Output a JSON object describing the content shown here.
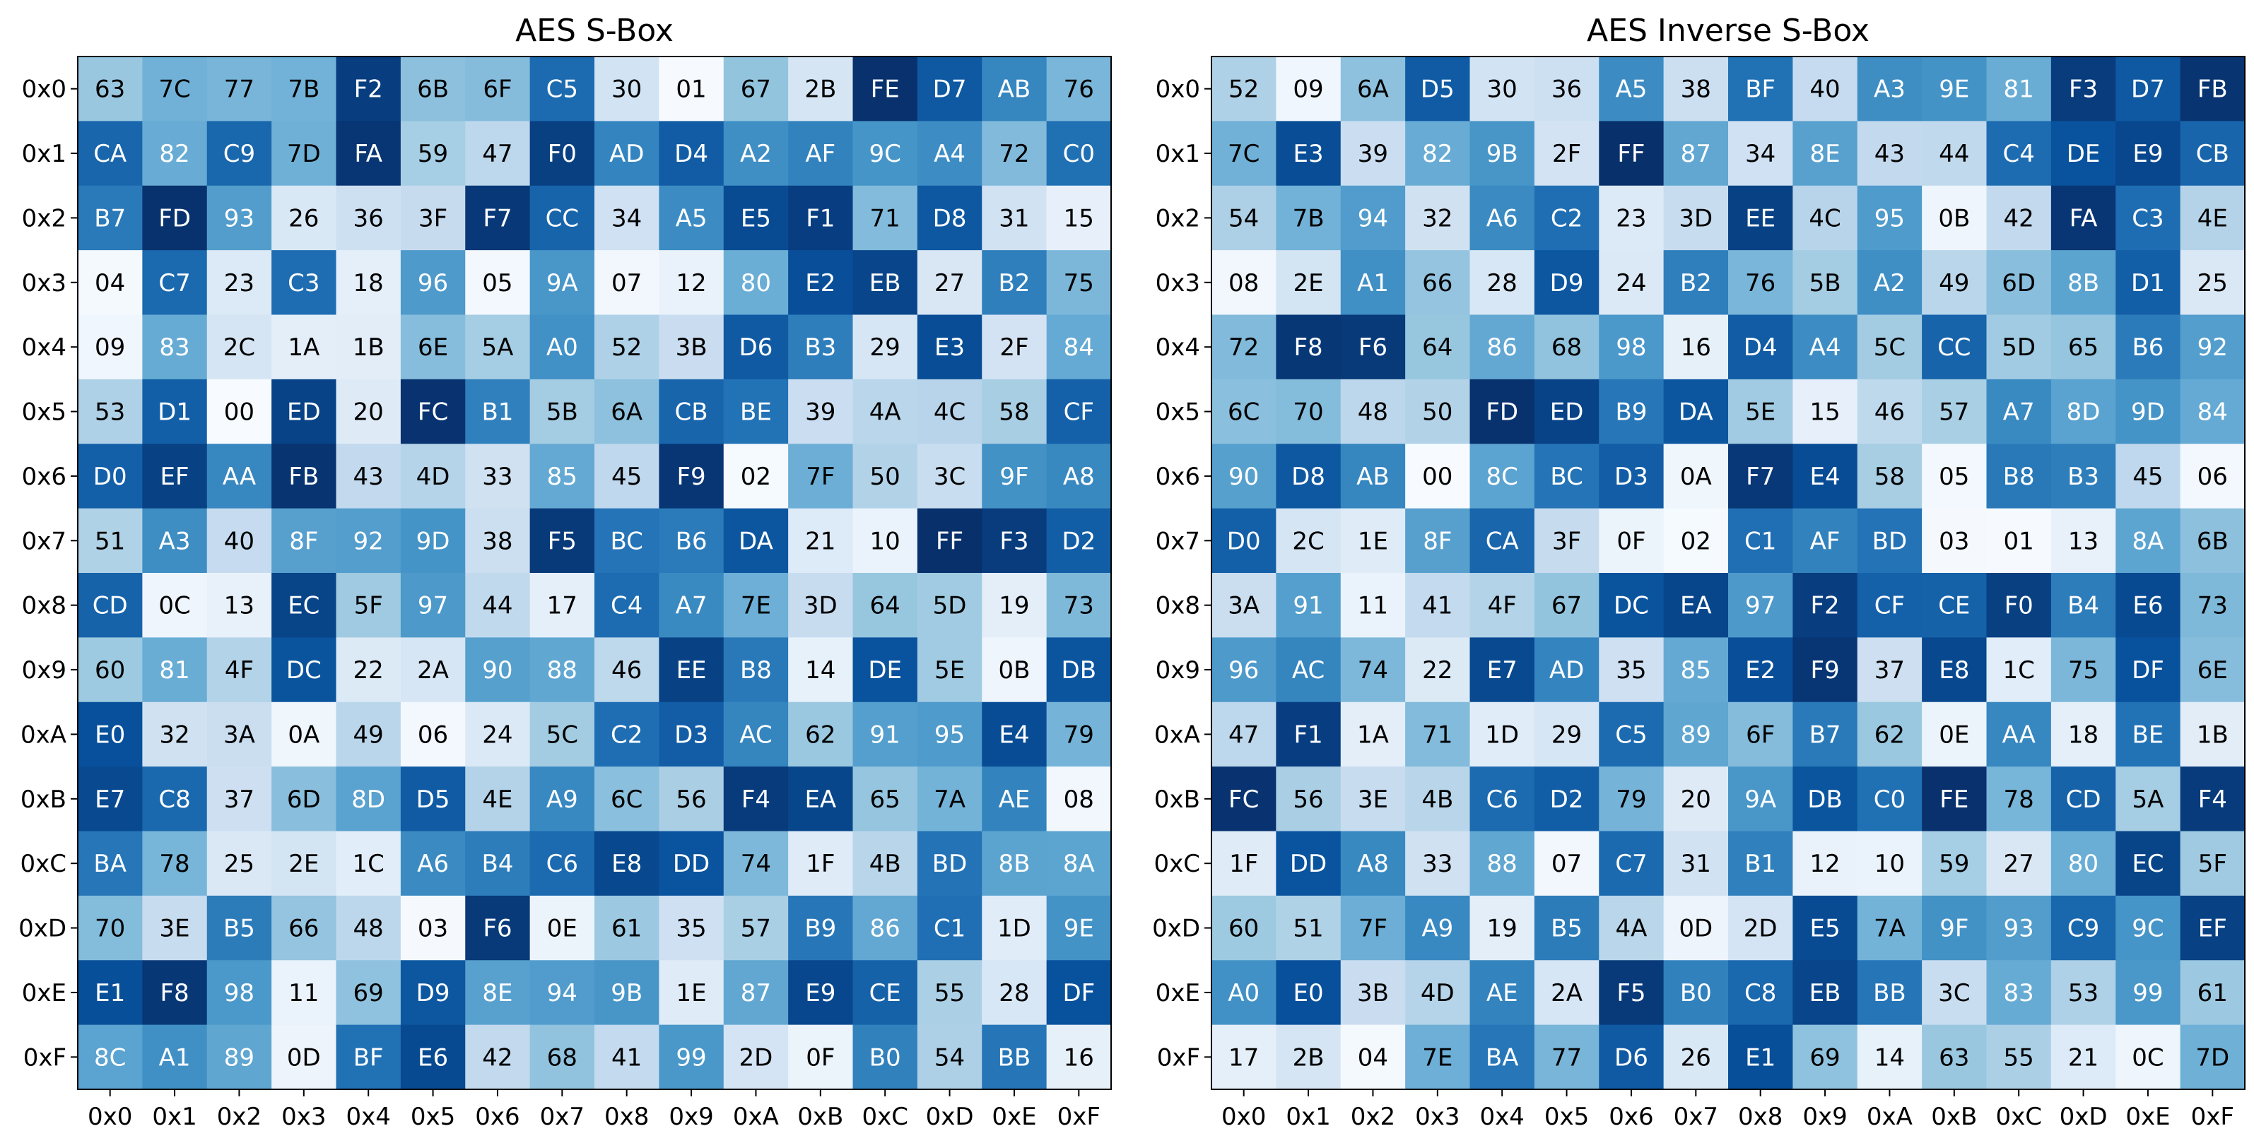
{
  "chart_data": [
    {
      "type": "heatmap",
      "title": "AES S-Box",
      "colormap": "Blues",
      "value_range": [
        0,
        255
      ],
      "x_ticks": [
        "0x0",
        "0x1",
        "0x2",
        "0x3",
        "0x4",
        "0x5",
        "0x6",
        "0x7",
        "0x8",
        "0x9",
        "0xA",
        "0xB",
        "0xC",
        "0xD",
        "0xE",
        "0xF"
      ],
      "y_ticks": [
        "0x0",
        "0x1",
        "0x2",
        "0x3",
        "0x4",
        "0x5",
        "0x6",
        "0x7",
        "0x8",
        "0x9",
        "0xA",
        "0xB",
        "0xC",
        "0xD",
        "0xE",
        "0xF"
      ],
      "rows": [
        [
          "63",
          "7C",
          "77",
          "7B",
          "F2",
          "6B",
          "6F",
          "C5",
          "30",
          "01",
          "67",
          "2B",
          "FE",
          "D7",
          "AB",
          "76"
        ],
        [
          "CA",
          "82",
          "C9",
          "7D",
          "FA",
          "59",
          "47",
          "F0",
          "AD",
          "D4",
          "A2",
          "AF",
          "9C",
          "A4",
          "72",
          "C0"
        ],
        [
          "B7",
          "FD",
          "93",
          "26",
          "36",
          "3F",
          "F7",
          "CC",
          "34",
          "A5",
          "E5",
          "F1",
          "71",
          "D8",
          "31",
          "15"
        ],
        [
          "04",
          "C7",
          "23",
          "C3",
          "18",
          "96",
          "05",
          "9A",
          "07",
          "12",
          "80",
          "E2",
          "EB",
          "27",
          "B2",
          "75"
        ],
        [
          "09",
          "83",
          "2C",
          "1A",
          "1B",
          "6E",
          "5A",
          "A0",
          "52",
          "3B",
          "D6",
          "B3",
          "29",
          "E3",
          "2F",
          "84"
        ],
        [
          "53",
          "D1",
          "00",
          "ED",
          "20",
          "FC",
          "B1",
          "5B",
          "6A",
          "CB",
          "BE",
          "39",
          "4A",
          "4C",
          "58",
          "CF"
        ],
        [
          "D0",
          "EF",
          "AA",
          "FB",
          "43",
          "4D",
          "33",
          "85",
          "45",
          "F9",
          "02",
          "7F",
          "50",
          "3C",
          "9F",
          "A8"
        ],
        [
          "51",
          "A3",
          "40",
          "8F",
          "92",
          "9D",
          "38",
          "F5",
          "BC",
          "B6",
          "DA",
          "21",
          "10",
          "FF",
          "F3",
          "D2"
        ],
        [
          "CD",
          "0C",
          "13",
          "EC",
          "5F",
          "97",
          "44",
          "17",
          "C4",
          "A7",
          "7E",
          "3D",
          "64",
          "5D",
          "19",
          "73"
        ],
        [
          "60",
          "81",
          "4F",
          "DC",
          "22",
          "2A",
          "90",
          "88",
          "46",
          "EE",
          "B8",
          "14",
          "DE",
          "5E",
          "0B",
          "DB"
        ],
        [
          "E0",
          "32",
          "3A",
          "0A",
          "49",
          "06",
          "24",
          "5C",
          "C2",
          "D3",
          "AC",
          "62",
          "91",
          "95",
          "E4",
          "79"
        ],
        [
          "E7",
          "C8",
          "37",
          "6D",
          "8D",
          "D5",
          "4E",
          "A9",
          "6C",
          "56",
          "F4",
          "EA",
          "65",
          "7A",
          "AE",
          "08"
        ],
        [
          "BA",
          "78",
          "25",
          "2E",
          "1C",
          "A6",
          "B4",
          "C6",
          "E8",
          "DD",
          "74",
          "1F",
          "4B",
          "BD",
          "8B",
          "8A"
        ],
        [
          "70",
          "3E",
          "B5",
          "66",
          "48",
          "03",
          "F6",
          "0E",
          "61",
          "35",
          "57",
          "B9",
          "86",
          "C1",
          "1D",
          "9E"
        ],
        [
          "E1",
          "F8",
          "98",
          "11",
          "69",
          "D9",
          "8E",
          "94",
          "9B",
          "1E",
          "87",
          "E9",
          "CE",
          "55",
          "28",
          "DF"
        ],
        [
          "8C",
          "A1",
          "89",
          "0D",
          "BF",
          "E6",
          "42",
          "68",
          "41",
          "99",
          "2D",
          "0F",
          "B0",
          "54",
          "BB",
          "16"
        ]
      ]
    },
    {
      "type": "heatmap",
      "title": "AES Inverse S-Box",
      "colormap": "Blues",
      "value_range": [
        0,
        255
      ],
      "x_ticks": [
        "0x0",
        "0x1",
        "0x2",
        "0x3",
        "0x4",
        "0x5",
        "0x6",
        "0x7",
        "0x8",
        "0x9",
        "0xA",
        "0xB",
        "0xC",
        "0xD",
        "0xE",
        "0xF"
      ],
      "y_ticks": [
        "0x0",
        "0x1",
        "0x2",
        "0x3",
        "0x4",
        "0x5",
        "0x6",
        "0x7",
        "0x8",
        "0x9",
        "0xA",
        "0xB",
        "0xC",
        "0xD",
        "0xE",
        "0xF"
      ],
      "rows": [
        [
          "52",
          "09",
          "6A",
          "D5",
          "30",
          "36",
          "A5",
          "38",
          "BF",
          "40",
          "A3",
          "9E",
          "81",
          "F3",
          "D7",
          "FB"
        ],
        [
          "7C",
          "E3",
          "39",
          "82",
          "9B",
          "2F",
          "FF",
          "87",
          "34",
          "8E",
          "43",
          "44",
          "C4",
          "DE",
          "E9",
          "CB"
        ],
        [
          "54",
          "7B",
          "94",
          "32",
          "A6",
          "C2",
          "23",
          "3D",
          "EE",
          "4C",
          "95",
          "0B",
          "42",
          "FA",
          "C3",
          "4E"
        ],
        [
          "08",
          "2E",
          "A1",
          "66",
          "28",
          "D9",
          "24",
          "B2",
          "76",
          "5B",
          "A2",
          "49",
          "6D",
          "8B",
          "D1",
          "25"
        ],
        [
          "72",
          "F8",
          "F6",
          "64",
          "86",
          "68",
          "98",
          "16",
          "D4",
          "A4",
          "5C",
          "CC",
          "5D",
          "65",
          "B6",
          "92"
        ],
        [
          "6C",
          "70",
          "48",
          "50",
          "FD",
          "ED",
          "B9",
          "DA",
          "5E",
          "15",
          "46",
          "57",
          "A7",
          "8D",
          "9D",
          "84"
        ],
        [
          "90",
          "D8",
          "AB",
          "00",
          "8C",
          "BC",
          "D3",
          "0A",
          "F7",
          "E4",
          "58",
          "05",
          "B8",
          "B3",
          "45",
          "06"
        ],
        [
          "D0",
          "2C",
          "1E",
          "8F",
          "CA",
          "3F",
          "0F",
          "02",
          "C1",
          "AF",
          "BD",
          "03",
          "01",
          "13",
          "8A",
          "6B"
        ],
        [
          "3A",
          "91",
          "11",
          "41",
          "4F",
          "67",
          "DC",
          "EA",
          "97",
          "F2",
          "CF",
          "CE",
          "F0",
          "B4",
          "E6",
          "73"
        ],
        [
          "96",
          "AC",
          "74",
          "22",
          "E7",
          "AD",
          "35",
          "85",
          "E2",
          "F9",
          "37",
          "E8",
          "1C",
          "75",
          "DF",
          "6E"
        ],
        [
          "47",
          "F1",
          "1A",
          "71",
          "1D",
          "29",
          "C5",
          "89",
          "6F",
          "B7",
          "62",
          "0E",
          "AA",
          "18",
          "BE",
          "1B"
        ],
        [
          "FC",
          "56",
          "3E",
          "4B",
          "C6",
          "D2",
          "79",
          "20",
          "9A",
          "DB",
          "C0",
          "FE",
          "78",
          "CD",
          "5A",
          "F4"
        ],
        [
          "1F",
          "DD",
          "A8",
          "33",
          "88",
          "07",
          "C7",
          "31",
          "B1",
          "12",
          "10",
          "59",
          "27",
          "80",
          "EC",
          "5F"
        ],
        [
          "60",
          "51",
          "7F",
          "A9",
          "19",
          "B5",
          "4A",
          "0D",
          "2D",
          "E5",
          "7A",
          "9F",
          "93",
          "C9",
          "9C",
          "EF"
        ],
        [
          "A0",
          "E0",
          "3B",
          "4D",
          "AE",
          "2A",
          "F5",
          "B0",
          "C8",
          "EB",
          "BB",
          "3C",
          "83",
          "53",
          "99",
          "61"
        ],
        [
          "17",
          "2B",
          "04",
          "7E",
          "BA",
          "77",
          "D6",
          "26",
          "E1",
          "69",
          "14",
          "63",
          "55",
          "21",
          "0C",
          "7D"
        ]
      ]
    }
  ]
}
